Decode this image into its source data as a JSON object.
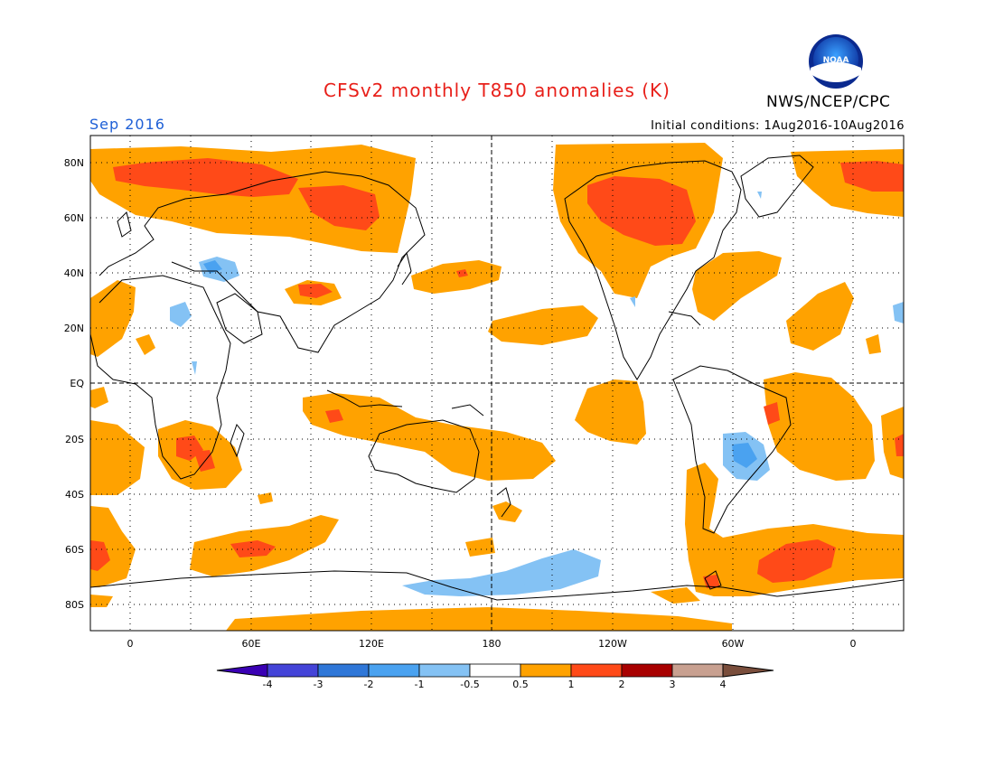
{
  "title": "CFSv2 monthly T850 anomalies (K)",
  "credit": "NWS/NCEP/CPC",
  "month": "Sep 2016",
  "initial_conditions": "Initial conditions: 1Aug2016-10Aug2016",
  "logo_text": "NOAA",
  "lat_labels": [
    "80N",
    "60N",
    "40N",
    "20N",
    "EQ",
    "20S",
    "40S",
    "60S",
    "80S"
  ],
  "lon_labels": [
    "0",
    "60E",
    "120E",
    "180",
    "120W",
    "60W",
    "0"
  ],
  "colorbar": {
    "tick_labels": [
      "-4",
      "-3",
      "-2",
      "-1",
      "-0.5",
      "0.5",
      "1",
      "2",
      "3",
      "4"
    ],
    "colors": [
      "#3a00b4",
      "#4444d8",
      "#2f77d8",
      "#4aa2f0",
      "#84c2f4",
      "#ffffff",
      "#ffa200",
      "#ff4a18",
      "#a80000",
      "#c8a090",
      "#7a4e3c"
    ]
  }
}
